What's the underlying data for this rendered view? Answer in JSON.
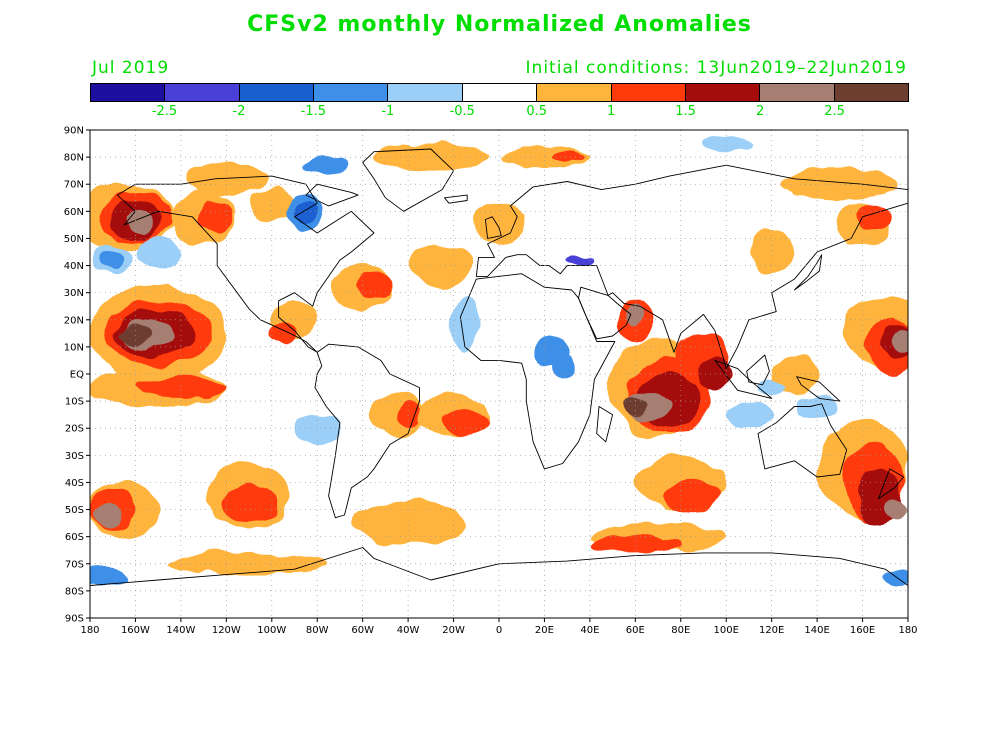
{
  "title": "CFSv2 monthly Normalized Anomalies",
  "month_label": "Jul 2019",
  "initial_conditions": "Initial conditions: 13Jun2019–22Jun2019",
  "colorbar": {
    "colors": [
      "#1d0fa0",
      "#4a3fd6",
      "#1a5fd0",
      "#3d8fe8",
      "#9ccff7",
      "#ffffff",
      "#ffb43c",
      "#ff3a0a",
      "#a50c0c",
      "#a67f72",
      "#6e3e30"
    ],
    "labels": [
      "-2.5",
      "-2",
      "-1.5",
      "-1",
      "-0.5",
      "0.5",
      "1",
      "1.5",
      "2",
      "2.5"
    ]
  },
  "lat_ticks": [
    "90N",
    "80N",
    "70N",
    "60N",
    "50N",
    "40N",
    "30N",
    "20N",
    "10N",
    "EQ",
    "10S",
    "20S",
    "30S",
    "40S",
    "50S",
    "60S",
    "70S",
    "80S",
    "90S"
  ],
  "lon_ticks": [
    "180",
    "160W",
    "140W",
    "120W",
    "100W",
    "80W",
    "60W",
    "40W",
    "20W",
    "0",
    "20E",
    "40E",
    "60E",
    "80E",
    "100E",
    "120E",
    "140E",
    "160E",
    "180"
  ]
}
